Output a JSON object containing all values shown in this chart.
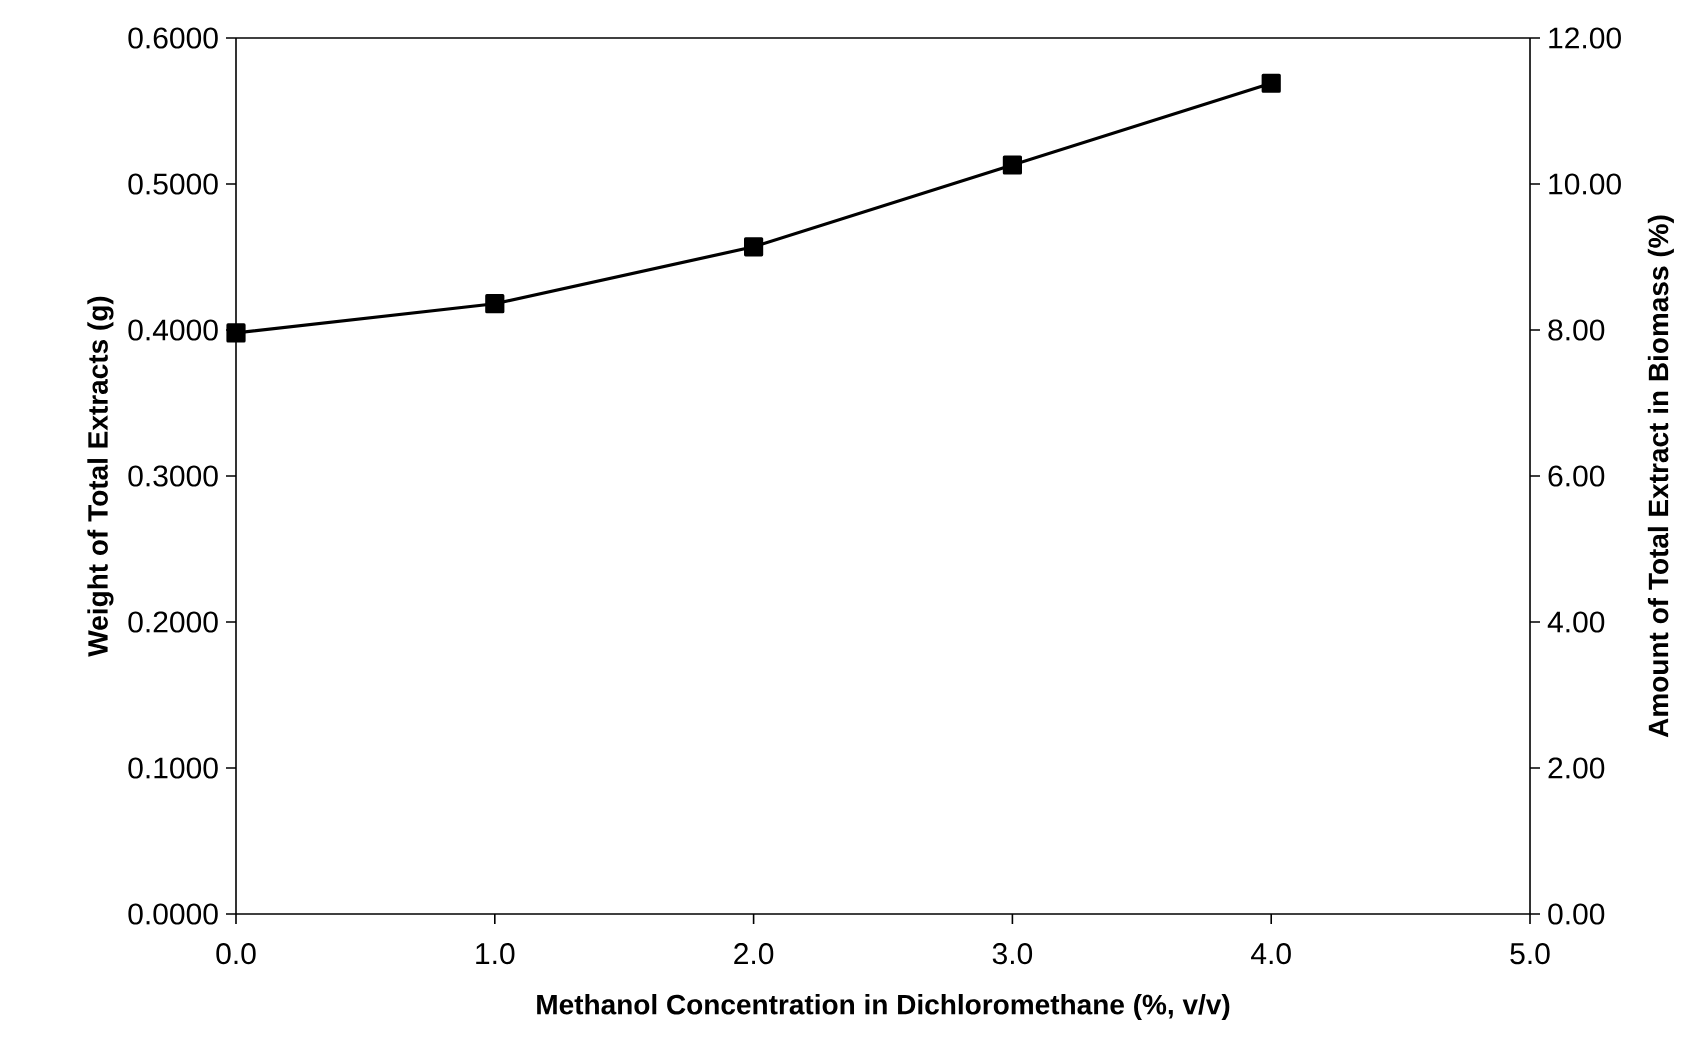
{
  "chart_data": {
    "type": "line",
    "xlabel": "Methanol Concentration in Dichloromethane (%, v/v)",
    "ylabel": "Weight of Total Extracts (g)",
    "y2label": "Amount of Total Extract  in Biomass (%)",
    "x": [
      0,
      1,
      2,
      3,
      4
    ],
    "series": [
      {
        "color": "#000000",
        "values": [
          0.398,
          0.418,
          0.457,
          0.513,
          0.569
        ]
      }
    ],
    "xlim": [
      0,
      5
    ],
    "xticks": [
      {
        "value": 0,
        "label": "0.0"
      },
      {
        "value": 1,
        "label": "1.0"
      },
      {
        "value": 2,
        "label": "2.0"
      },
      {
        "value": 3,
        "label": "3.0"
      },
      {
        "value": 4,
        "label": "4.0"
      },
      {
        "value": 5,
        "label": "5.0"
      }
    ],
    "ylim": [
      0,
      0.6
    ],
    "yticks": [
      {
        "value": 0,
        "label": "0.0000"
      },
      {
        "value": 0.1,
        "label": "0.1000"
      },
      {
        "value": 0.2,
        "label": "0.2000"
      },
      {
        "value": 0.3,
        "label": "0.3000"
      },
      {
        "value": 0.4,
        "label": "0.4000"
      },
      {
        "value": 0.5,
        "label": "0.5000"
      },
      {
        "value": 0.6,
        "label": "0.6000"
      }
    ],
    "y2lim": [
      0,
      12
    ],
    "y2ticks": [
      {
        "value": 0,
        "label": "0.00"
      },
      {
        "value": 2,
        "label": "2.00"
      },
      {
        "value": 4,
        "label": "4.00"
      },
      {
        "value": 6,
        "label": "6.00"
      },
      {
        "value": 8,
        "label": "8.00"
      },
      {
        "value": 10,
        "label": "10.00"
      },
      {
        "value": 12,
        "label": "12.00"
      }
    ],
    "marker": "square",
    "line_style": "solid"
  }
}
